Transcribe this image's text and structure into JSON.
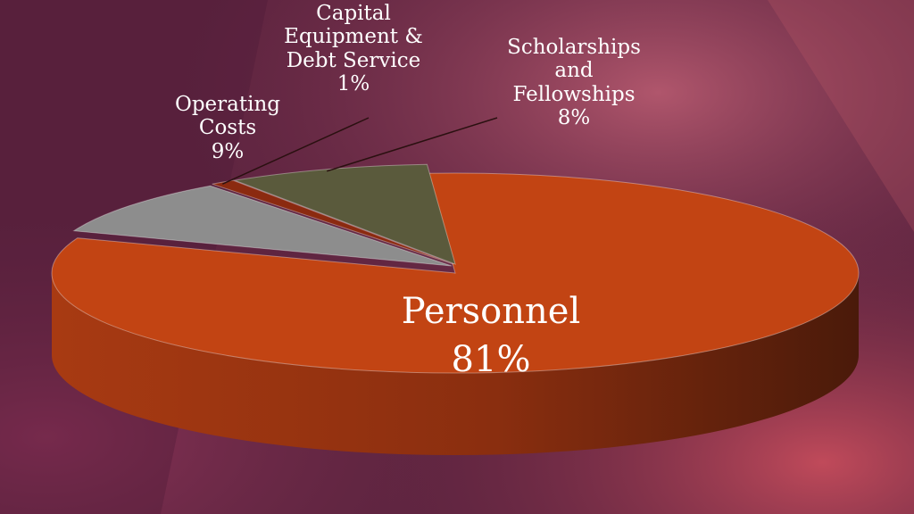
{
  "chart_data": {
    "type": "pie",
    "style": "3d-pie",
    "title": "",
    "slices": [
      {
        "label": "Personnel",
        "pct_text": "81%",
        "value": 81,
        "color": "#c24413"
      },
      {
        "label": "Operating Costs",
        "pct_text": "9%",
        "value": 9,
        "color": "#8d8d8d"
      },
      {
        "label": "Capital Equipment & Debt Service",
        "pct_text": "1%",
        "value": 1,
        "color": "#8b2a10"
      },
      {
        "label": "Scholarships and Fellowships",
        "pct_text": "8%",
        "value": 8,
        "color": "#5a5a3c"
      }
    ],
    "label_lines": {
      "personnel": [
        "Personnel"
      ],
      "operating": [
        "Operating",
        "Costs"
      ],
      "capital": [
        "Capital",
        "Equipment &",
        "Debt Service"
      ],
      "scholarships": [
        "Scholarships",
        "and",
        "Fellowships"
      ]
    },
    "legend": "none",
    "label_placement": "data labels"
  }
}
